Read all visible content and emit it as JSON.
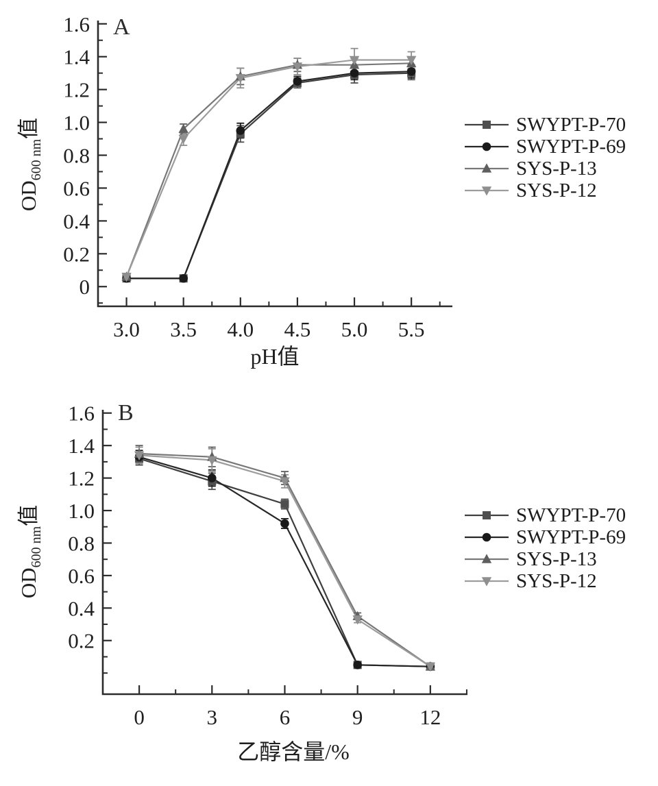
{
  "figure": {
    "background": "#ffffff",
    "axis_color": "#2b2b2b",
    "tick_label_color": "#1f1f1f",
    "ylabel": {
      "prefix": "OD",
      "sub": "600 nm",
      "suffix": "值"
    }
  },
  "chart_data": [
    {
      "type": "line",
      "panel_label": "A",
      "xlabel": "pH值",
      "ylabel": "OD600 nm值",
      "legend_position": "right",
      "grid": false,
      "x": [
        3.0,
        3.5,
        4.0,
        4.5,
        5.0,
        5.5
      ],
      "xtick_values": [
        3.0,
        3.5,
        4.0,
        4.5,
        5.0,
        5.5
      ],
      "xtick_labels": [
        "3.0",
        "3.5",
        "4.0",
        "4.5",
        "5.0",
        "5.5"
      ],
      "xminor": [
        3.25,
        3.75,
        4.25,
        4.75,
        5.25,
        5.75
      ],
      "ytick_values": [
        0,
        0.2,
        0.4,
        0.6,
        0.8,
        1.0,
        1.2,
        1.4,
        1.6
      ],
      "ytick_labels": [
        "0",
        "0.2",
        "0.4",
        "0.6",
        "0.8",
        "1.0",
        "1.2",
        "1.4",
        "1.6"
      ],
      "yminor": [
        -0.1,
        0.1,
        0.3,
        0.5,
        0.7,
        0.9,
        1.1,
        1.3,
        1.5
      ],
      "xlim": [
        2.75,
        5.86
      ],
      "ylim": [
        -0.12,
        1.62
      ],
      "series": [
        {
          "name": "SWYPT-P-70",
          "marker": "square",
          "color": "#4f4f4f",
          "line_color": "#3f3f3f",
          "values": [
            0.05,
            0.05,
            0.93,
            1.24,
            1.29,
            1.3
          ],
          "errors": [
            0.012,
            0.012,
            0.05,
            0.03,
            0.05,
            0.04
          ]
        },
        {
          "name": "SWYPT-P-69",
          "marker": "circle",
          "color": "#1a1a1a",
          "line_color": "#262626",
          "values": [
            0.05,
            0.05,
            0.95,
            1.25,
            1.3,
            1.31
          ],
          "errors": [
            0.012,
            0.012,
            0.045,
            0.03,
            0.04,
            0.04
          ]
        },
        {
          "name": "SYS-P-13",
          "marker": "triangle-up",
          "color": "#5f5f5f",
          "line_color": "#787878",
          "values": [
            0.06,
            0.96,
            1.28,
            1.35,
            1.35,
            1.36
          ],
          "errors": [
            0.012,
            0.03,
            0.05,
            0.04,
            0.04,
            0.04
          ]
        },
        {
          "name": "SYS-P-12",
          "marker": "triangle-down",
          "color": "#8f8f8f",
          "line_color": "#9c9c9c",
          "values": [
            0.06,
            0.9,
            1.27,
            1.34,
            1.38,
            1.38
          ],
          "errors": [
            0.012,
            0.04,
            0.06,
            0.05,
            0.07,
            0.05
          ]
        }
      ]
    },
    {
      "type": "line",
      "panel_label": "B",
      "xlabel": "乙醇含量/%",
      "ylabel": "OD600 nm值",
      "legend_position": "right",
      "grid": false,
      "x": [
        0,
        3,
        6,
        9,
        12
      ],
      "xtick_values": [
        0,
        3,
        6,
        9,
        12
      ],
      "xtick_labels": [
        "0",
        "3",
        "6",
        "9",
        "12"
      ],
      "xminor": [
        1.5,
        4.5,
        7.5,
        10.5,
        13.5
      ],
      "ytick_values": [
        0.2,
        0.4,
        0.6,
        0.8,
        1.0,
        1.2,
        1.4,
        1.6
      ],
      "ytick_labels": [
        "0.2",
        "0.4",
        "0.6",
        "0.8",
        "1.0",
        "1.2",
        "1.4",
        "1.6"
      ],
      "yminor": [
        0,
        0.1,
        0.3,
        0.5,
        0.7,
        0.9,
        1.1,
        1.3,
        1.5
      ],
      "xlim": [
        -1.5,
        13.53
      ],
      "ylim": [
        -0.13,
        1.62
      ],
      "series": [
        {
          "name": "SWYPT-P-70",
          "marker": "square",
          "color": "#4f4f4f",
          "line_color": "#3f3f3f",
          "values": [
            1.32,
            1.18,
            1.04,
            0.05,
            0.04
          ],
          "errors": [
            0.04,
            0.05,
            0.03,
            0.01,
            0.008
          ]
        },
        {
          "name": "SWYPT-P-69",
          "marker": "circle",
          "color": "#1a1a1a",
          "line_color": "#262626",
          "values": [
            1.33,
            1.2,
            0.92,
            0.05,
            0.04
          ],
          "errors": [
            0.04,
            0.05,
            0.03,
            0.01,
            0.008
          ]
        },
        {
          "name": "SYS-P-13",
          "marker": "triangle-up",
          "color": "#5f5f5f",
          "line_color": "#787878",
          "values": [
            1.35,
            1.33,
            1.2,
            0.35,
            0.04
          ],
          "errors": [
            0.05,
            0.06,
            0.04,
            0.02,
            0.008
          ]
        },
        {
          "name": "SYS-P-12",
          "marker": "triangle-down",
          "color": "#8f8f8f",
          "line_color": "#9c9c9c",
          "values": [
            1.34,
            1.31,
            1.18,
            0.33,
            0.04
          ],
          "errors": [
            0.05,
            0.07,
            0.04,
            0.02,
            0.008
          ]
        }
      ]
    }
  ]
}
